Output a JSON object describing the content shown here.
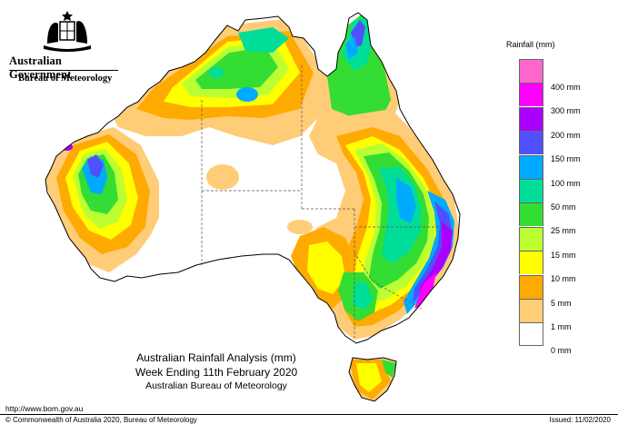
{
  "header": {
    "government": "Australian Government",
    "bureau": "Bureau of Meteorology"
  },
  "caption": {
    "line1": "Australian Rainfall Analysis (mm)",
    "line2": "Week Ending 11th February 2020",
    "line3": "Australian Bureau of Meteorology"
  },
  "footer": {
    "url": "http://www.bom.gov.au",
    "copyright": "© Commonwealth of Australia 2020, Bureau of Meteorology",
    "issued": "Issued: 11/02/2020"
  },
  "legend": {
    "title": "Rainfall (mm)",
    "swatches": [
      {
        "color": "#ff66cc",
        "label": "400 mm"
      },
      {
        "color": "#ff00ff",
        "label": "300 mm"
      },
      {
        "color": "#aa00ff",
        "label": "200 mm"
      },
      {
        "color": "#5050ff",
        "label": "150 mm"
      },
      {
        "color": "#00aaff",
        "label": "100 mm"
      },
      {
        "color": "#00dd99",
        "label": "50 mm"
      },
      {
        "color": "#33dd33",
        "label": "25 mm"
      },
      {
        "color": "#bbff33",
        "label": "15 mm"
      },
      {
        "color": "#ffff00",
        "label": "10 mm"
      },
      {
        "color": "#ffaa00",
        "label": "5 mm"
      },
      {
        "color": "#ffcc77",
        "label": "1 mm"
      },
      {
        "color": "#ffffff",
        "label": "0 mm"
      }
    ]
  }
}
